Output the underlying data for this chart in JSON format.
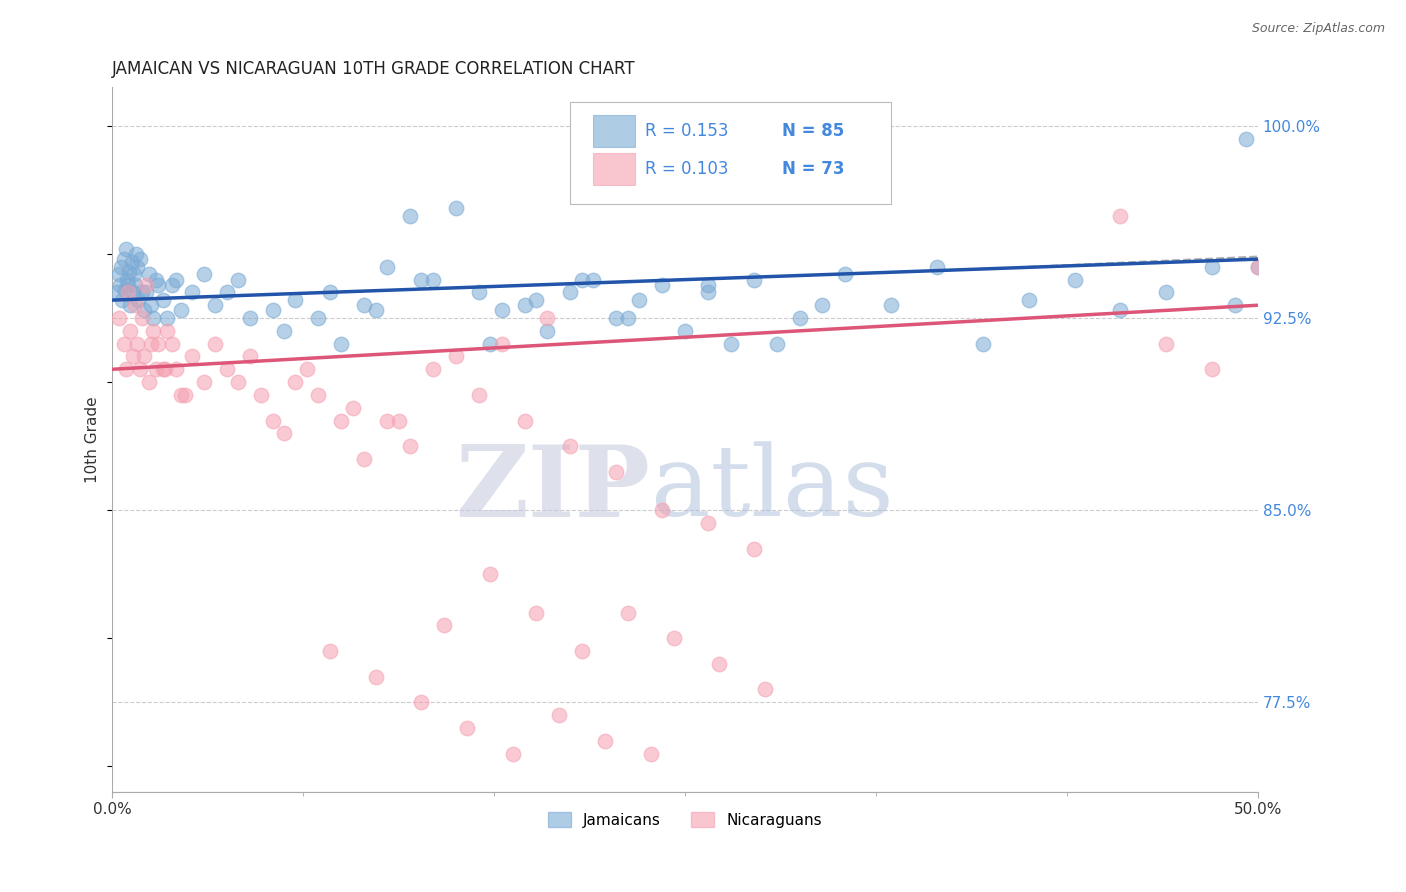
{
  "title": "JAMAICAN VS NICARAGUAN 10TH GRADE CORRELATION CHART",
  "source": "Source: ZipAtlas.com",
  "ylabel": "10th Grade",
  "xlim": [
    0.0,
    50.0
  ],
  "ylim": [
    74.0,
    101.5
  ],
  "yticks": [
    77.5,
    85.0,
    92.5,
    100.0
  ],
  "blue_R": 0.153,
  "blue_N": 85,
  "pink_R": 0.103,
  "pink_N": 73,
  "blue_color": "#7aaad4",
  "pink_color": "#f5a0b0",
  "blue_line_color": "#2255AA",
  "pink_line_color": "#DD5577",
  "grid_color": "#CCCCCC",
  "legend_label_blue": "Jamaicans",
  "legend_label_pink": "Nicaraguans",
  "blue_x": [
    0.2,
    0.3,
    0.35,
    0.4,
    0.45,
    0.5,
    0.55,
    0.6,
    0.65,
    0.7,
    0.75,
    0.8,
    0.85,
    0.9,
    0.95,
    1.0,
    1.05,
    1.1,
    1.15,
    1.2,
    1.3,
    1.4,
    1.5,
    1.6,
    1.7,
    1.8,
    1.9,
    2.0,
    2.2,
    2.4,
    2.6,
    2.8,
    3.0,
    3.5,
    4.0,
    4.5,
    5.0,
    5.5,
    6.0,
    7.0,
    8.0,
    9.0,
    10.0,
    11.0,
    12.0,
    13.0,
    14.0,
    15.0,
    16.0,
    17.0,
    18.0,
    19.0,
    20.0,
    21.0,
    22.0,
    23.0,
    24.0,
    25.0,
    26.0,
    27.0,
    28.0,
    30.0,
    32.0,
    34.0,
    36.0,
    38.0,
    40.0,
    42.0,
    44.0,
    46.0,
    48.0,
    49.0,
    49.5,
    50.0,
    7.5,
    9.5,
    11.5,
    13.5,
    16.5,
    18.5,
    20.5,
    22.5,
    26.0,
    29.0,
    31.0
  ],
  "blue_y": [
    93.5,
    94.2,
    93.8,
    94.5,
    93.2,
    94.8,
    93.6,
    95.2,
    94.0,
    93.8,
    94.3,
    93.0,
    94.7,
    93.5,
    94.2,
    93.8,
    95.0,
    94.5,
    93.2,
    94.8,
    93.5,
    92.8,
    93.5,
    94.2,
    93.0,
    92.5,
    94.0,
    93.8,
    93.2,
    92.5,
    93.8,
    94.0,
    92.8,
    93.5,
    94.2,
    93.0,
    93.5,
    94.0,
    92.5,
    92.8,
    93.2,
    92.5,
    91.5,
    93.0,
    94.5,
    96.5,
    94.0,
    96.8,
    93.5,
    92.8,
    93.0,
    92.0,
    93.5,
    94.0,
    92.5,
    93.2,
    93.8,
    92.0,
    93.5,
    91.5,
    94.0,
    92.5,
    94.2,
    93.0,
    94.5,
    91.5,
    93.2,
    94.0,
    92.8,
    93.5,
    94.5,
    93.0,
    99.5,
    94.5,
    92.0,
    93.5,
    92.8,
    94.0,
    91.5,
    93.2,
    94.0,
    92.5,
    93.8,
    91.5,
    93.0
  ],
  "pink_x": [
    0.3,
    0.5,
    0.6,
    0.7,
    0.8,
    0.9,
    1.0,
    1.1,
    1.2,
    1.3,
    1.4,
    1.5,
    1.6,
    1.7,
    1.8,
    1.9,
    2.0,
    2.2,
    2.4,
    2.6,
    2.8,
    3.0,
    3.5,
    4.0,
    5.0,
    6.0,
    7.0,
    8.0,
    9.0,
    10.0,
    11.0,
    12.0,
    13.0,
    15.0,
    17.0,
    19.0,
    2.3,
    3.2,
    4.5,
    5.5,
    6.5,
    7.5,
    8.5,
    10.5,
    12.5,
    14.0,
    16.0,
    18.0,
    20.0,
    22.0,
    24.0,
    26.0,
    28.0,
    14.5,
    16.5,
    18.5,
    20.5,
    22.5,
    24.5,
    26.5,
    28.5,
    9.5,
    11.5,
    13.5,
    15.5,
    17.5,
    19.5,
    21.5,
    23.5,
    44.0,
    46.0,
    48.0,
    50.0
  ],
  "pink_y": [
    92.5,
    91.5,
    90.5,
    93.5,
    92.0,
    91.0,
    93.0,
    91.5,
    90.5,
    92.5,
    91.0,
    93.8,
    90.0,
    91.5,
    92.0,
    90.5,
    91.5,
    90.5,
    92.0,
    91.5,
    90.5,
    89.5,
    91.0,
    90.0,
    90.5,
    91.0,
    88.5,
    90.0,
    89.5,
    88.5,
    87.0,
    88.5,
    87.5,
    91.0,
    91.5,
    92.5,
    90.5,
    89.5,
    91.5,
    90.0,
    89.5,
    88.0,
    90.5,
    89.0,
    88.5,
    90.5,
    89.5,
    88.5,
    87.5,
    86.5,
    85.0,
    84.5,
    83.5,
    80.5,
    82.5,
    81.0,
    79.5,
    81.0,
    80.0,
    79.0,
    78.0,
    79.5,
    78.5,
    77.5,
    76.5,
    75.5,
    77.0,
    76.0,
    75.5,
    96.5,
    91.5,
    90.5,
    94.5
  ]
}
